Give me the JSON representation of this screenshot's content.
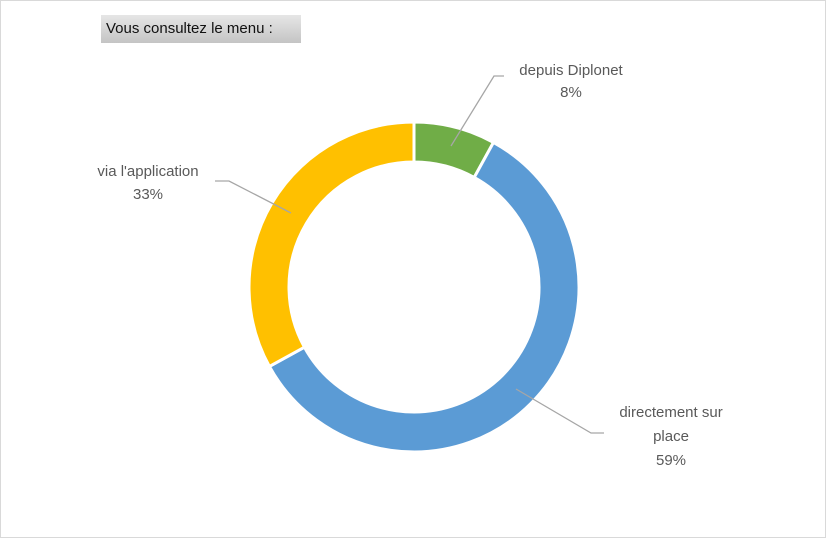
{
  "chart_data": {
    "type": "pie",
    "style": "donut",
    "title": "Vous consultez le menu :",
    "slices": [
      {
        "label": "depuis Diplonet",
        "value": 8,
        "value_label": "8%",
        "color": "#70AD47"
      },
      {
        "label": "directement sur place",
        "label_lines": [
          "directement sur",
          "place"
        ],
        "value": 59,
        "value_label": "59%",
        "color": "#5B9BD5"
      },
      {
        "label": "via l'application",
        "value": 33,
        "value_label": "33%",
        "color": "#FFC000"
      }
    ],
    "start_angle": "top",
    "direction": "clockwise",
    "legend": "none",
    "leader_line_color": "#A6A6A6"
  }
}
